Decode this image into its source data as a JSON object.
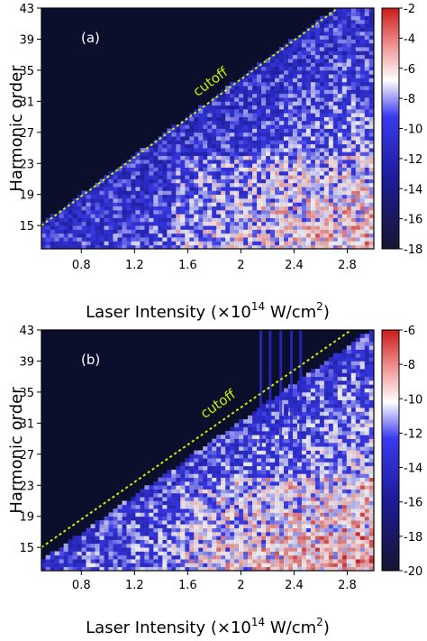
{
  "chart_data": [
    {
      "type": "heatmap",
      "panel_label": "(a)",
      "xlabel_main": "Laser Intensity (×10",
      "xlabel_exp": "14",
      "xlabel_unit": " W/cm",
      "xlabel_unit_exp": "2",
      "ylabel": "Harmonic order",
      "xlim": [
        0.5,
        3.0
      ],
      "ylim": [
        12,
        43
      ],
      "x_ticks": [
        "0.8",
        "1.2",
        "1.6",
        "2",
        "2.4",
        "2.8"
      ],
      "y_ticks": [
        "15",
        "19",
        "23",
        "27",
        "31",
        "35",
        "39",
        "43"
      ],
      "colorbar_ticks": [
        "-2",
        "-4",
        "-6",
        "-8",
        "-10",
        "-12",
        "-14",
        "-16",
        "-18"
      ],
      "colorbar_range": [
        -18,
        -2
      ],
      "annotation": "cutoff",
      "cutoff_line": {
        "x": [
          0.5,
          2.73
        ],
        "y": [
          15,
          43
        ]
      }
    },
    {
      "type": "heatmap",
      "panel_label": "(b)",
      "xlabel_main": "Laser Intensity (×10",
      "xlabel_exp": "14",
      "xlabel_unit": " W/cm",
      "xlabel_unit_exp": "2",
      "ylabel": "Harmonic order",
      "xlim": [
        0.5,
        3.0
      ],
      "ylim": [
        12,
        43
      ],
      "x_ticks": [
        "0.8",
        "1.2",
        "1.6",
        "2",
        "2.4",
        "2.8"
      ],
      "y_ticks": [
        "15",
        "19",
        "23",
        "27",
        "31",
        "35",
        "39",
        "43"
      ],
      "colorbar_ticks": [
        "-6",
        "-8",
        "-10",
        "-12",
        "-14",
        "-16",
        "-18",
        "-20"
      ],
      "colorbar_range": [
        -20,
        -6
      ],
      "annotation": "cutoff",
      "cutoff_line": {
        "x": [
          0.5,
          2.83
        ],
        "y": [
          15,
          43
        ]
      }
    }
  ],
  "colors": {
    "background_map": "#0b0f2c",
    "cutoff_line": "#c8f000",
    "cutoff_text": "#c8f000",
    "panel_label": "#ffffff",
    "colormap": [
      "#151530",
      "#1c1c9a",
      "#3a3af0",
      "#ffffff",
      "#ef8f8f",
      "#cc1a1a"
    ]
  }
}
